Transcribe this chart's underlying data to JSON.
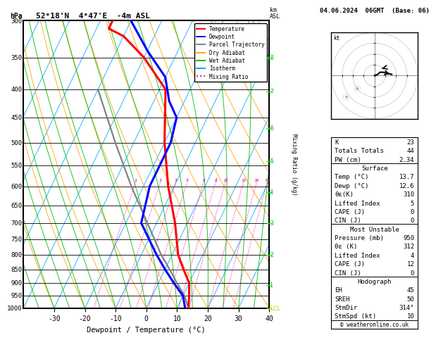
{
  "title_left": "52°18'N  4°47'E  -4m ASL",
  "title_right": "04.06.2024  06GMT  (Base: 06)",
  "xlabel": "Dewpoint / Temperature (°C)",
  "pressure_levels": [
    300,
    350,
    400,
    450,
    500,
    550,
    600,
    650,
    700,
    750,
    800,
    850,
    900,
    950,
    1000
  ],
  "temp_ticks": [
    -30,
    -20,
    -10,
    0,
    10,
    20,
    30,
    40
  ],
  "P_min": 300,
  "P_max": 1000,
  "T_min": -40,
  "T_max": 40,
  "skew": 45,
  "temp_profile_T": [
    13.7,
    12.0,
    10.0,
    6.0,
    2.0,
    -4.0,
    -12.0,
    -20.0,
    -28.0,
    -40.0,
    -50.0,
    -56.0,
    -56.0
  ],
  "temp_profile_P": [
    1000,
    950,
    900,
    850,
    800,
    700,
    600,
    500,
    400,
    350,
    320,
    310,
    300
  ],
  "dewp_profile_T": [
    12.6,
    10.0,
    5.0,
    0.0,
    -5.0,
    -15.0,
    -18.0,
    -18.0,
    -20.0,
    -25.0,
    -30.0,
    -40.0,
    -50.0
  ],
  "dewp_profile_P": [
    1000,
    950,
    900,
    850,
    800,
    700,
    600,
    500,
    450,
    420,
    380,
    340,
    300
  ],
  "parcel_T": [
    13.7,
    10.5,
    6.0,
    1.5,
    -3.5,
    -13.0,
    -24.0,
    -36.0,
    -50.0
  ],
  "parcel_P": [
    1000,
    950,
    900,
    850,
    800,
    700,
    600,
    500,
    400
  ],
  "km_map": [
    [
      0,
      "LCL",
      1000
    ],
    [
      1,
      "1",
      907
    ],
    [
      2,
      "2",
      800
    ],
    [
      3,
      "3",
      700
    ],
    [
      4,
      "4",
      615
    ],
    [
      5,
      "5",
      540
    ],
    [
      6,
      "6",
      470
    ],
    [
      7,
      "7",
      404
    ],
    [
      8,
      "8",
      350
    ]
  ],
  "mix_ratios": [
    1,
    2,
    3,
    4,
    6,
    8,
    10,
    15,
    20,
    25
  ],
  "colors": {
    "temperature": "#FF0000",
    "dewpoint": "#0000FF",
    "parcel": "#808080",
    "dry_adiabat": "#FFA500",
    "wet_adiabat": "#00BB00",
    "isotherm": "#00AAFF",
    "mixing_ratio": "#FF00AA",
    "km_label": "#00CC00",
    "lcl_label": "#CCCC00",
    "wind_tick": "#00FF00"
  },
  "legend_entries": [
    {
      "label": "Temperature",
      "color": "#FF0000",
      "style": "-"
    },
    {
      "label": "Dewpoint",
      "color": "#0000FF",
      "style": "-"
    },
    {
      "label": "Parcel Trajectory",
      "color": "#808080",
      "style": "-"
    },
    {
      "label": "Dry Adiabat",
      "color": "#FFA500",
      "style": "-"
    },
    {
      "label": "Wet Adiabat",
      "color": "#00BB00",
      "style": "-"
    },
    {
      "label": "Isotherm",
      "color": "#00AAFF",
      "style": "-"
    },
    {
      "label": "Mixing Ratio",
      "color": "#FF00AA",
      "style": ":"
    }
  ],
  "stats_top": [
    [
      "K",
      "23"
    ],
    [
      "Totals Totals",
      "44"
    ],
    [
      "PW (cm)",
      "2.34"
    ]
  ],
  "surface_rows": [
    [
      "Temp (°C)",
      "13.7"
    ],
    [
      "Dewp (°C)",
      "12.6"
    ],
    [
      "θε(K)",
      "310"
    ],
    [
      "Lifted Index",
      "5"
    ],
    [
      "CAPE (J)",
      "0"
    ],
    [
      "CIN (J)",
      "0"
    ]
  ],
  "mu_rows": [
    [
      "Pressure (mb)",
      "950"
    ],
    [
      "θε (K)",
      "312"
    ],
    [
      "Lifted Index",
      "4"
    ],
    [
      "CAPE (J)",
      "12"
    ],
    [
      "CIN (J)",
      "0"
    ]
  ],
  "hodo_rows": [
    [
      "EH",
      "45"
    ],
    [
      "SREH",
      "50"
    ],
    [
      "StmDir",
      "314°"
    ],
    [
      "StmSpd (kt)",
      "10"
    ]
  ],
  "copyright": "© weatheronline.co.uk"
}
